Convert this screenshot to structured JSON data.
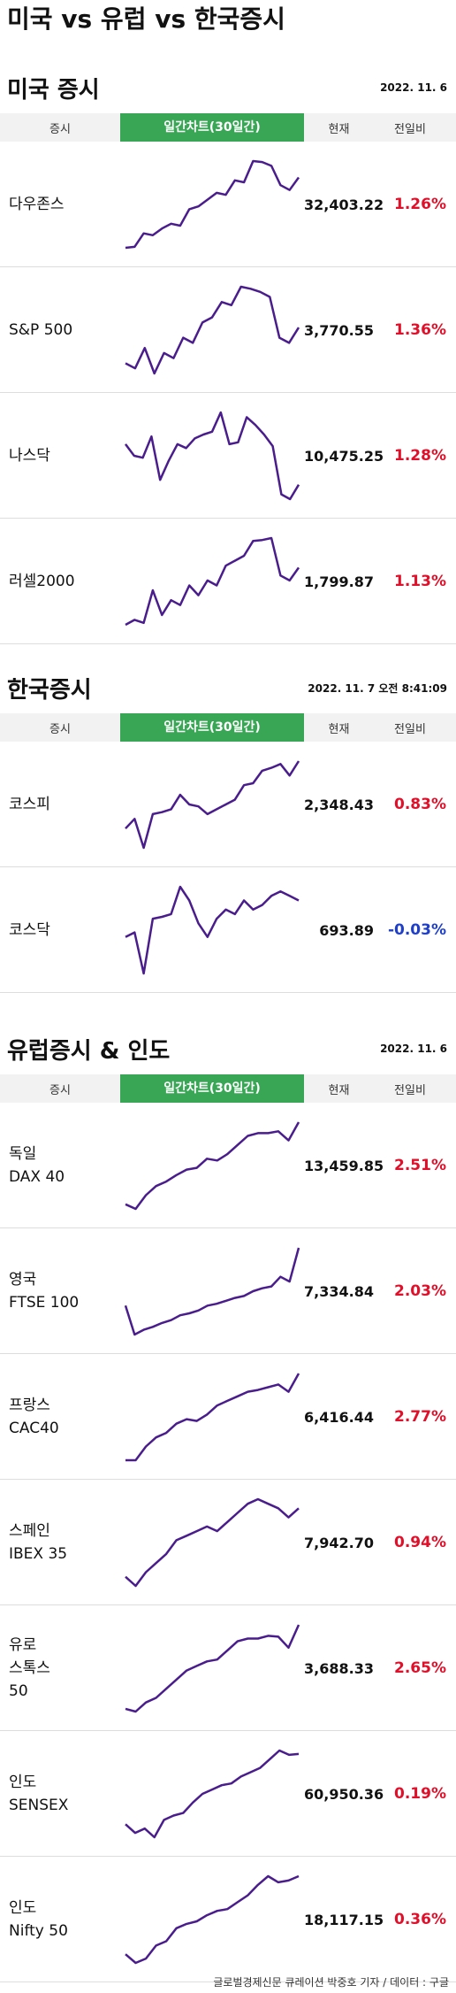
{
  "title": "미국 vs 유럽 vs 한국증시",
  "sections": [
    {
      "title": "미국 증시",
      "date": "2022. 11. 6",
      "header": {
        "market": "증시",
        "chart": "일간차트(30일간)",
        "current": "현재",
        "change": "전일비"
      },
      "rows": [
        {
          "name": [
            "다우존스"
          ],
          "current": "32,403.22",
          "change": "1.26%",
          "spark": [
            5,
            6,
            20,
            18,
            25,
            30,
            28,
            45,
            48,
            55,
            62,
            60,
            75,
            73,
            95,
            94,
            90,
            70,
            65,
            78
          ]
        },
        {
          "name": [
            "S&P 500"
          ],
          "current": "3,770.55",
          "change": "1.36%",
          "spark": [
            15,
            10,
            30,
            5,
            25,
            20,
            40,
            35,
            55,
            60,
            75,
            72,
            90,
            88,
            85,
            80,
            40,
            35,
            50
          ]
        },
        {
          "name": [
            "나스닥"
          ],
          "current": "10,475.25",
          "change": "1.28%",
          "spark": [
            62,
            50,
            48,
            70,
            25,
            45,
            62,
            58,
            68,
            72,
            75,
            95,
            62,
            64,
            90,
            82,
            72,
            60,
            10,
            5,
            20
          ]
        },
        {
          "name": [
            "러셀2000"
          ],
          "current": "1,799.87",
          "change": "1.13%",
          "spark": [
            10,
            15,
            12,
            45,
            20,
            35,
            30,
            50,
            40,
            55,
            50,
            70,
            75,
            80,
            95,
            96,
            98,
            60,
            55,
            68
          ]
        }
      ]
    },
    {
      "title": "한국증시",
      "date": "2022. 11. 7 오전 8:41:09",
      "header": {
        "market": "증시",
        "chart": "일간차트(30일간)",
        "current": "현재",
        "change": "전일비"
      },
      "rows": [
        {
          "name": [
            "코스피"
          ],
          "current": "2,348.43",
          "change": "0.83%",
          "spark": [
            25,
            35,
            5,
            40,
            42,
            45,
            60,
            50,
            48,
            40,
            45,
            50,
            55,
            70,
            72,
            85,
            88,
            92,
            80,
            95
          ]
        },
        {
          "name": [
            "코스닥"
          ],
          "current": "693.89",
          "change": "-0.03%",
          "spark": [
            40,
            45,
            0,
            60,
            62,
            65,
            95,
            80,
            55,
            40,
            60,
            70,
            65,
            80,
            70,
            75,
            85,
            90,
            85,
            80
          ]
        }
      ]
    },
    {
      "title": "유럽증시 & 인도",
      "date": "2022. 11. 6",
      "header": {
        "market": "증시",
        "chart": "일간차트(30일간)",
        "current": "현재",
        "change": "전일비"
      },
      "rows": [
        {
          "name": [
            "독일",
            "DAX 40"
          ],
          "current": "13,459.85",
          "change": "2.51%",
          "spark": [
            10,
            5,
            20,
            30,
            35,
            42,
            48,
            50,
            60,
            58,
            65,
            75,
            85,
            88,
            88,
            90,
            80,
            100
          ]
        },
        {
          "name": [
            "영국",
            "FTSE 100"
          ],
          "current": "7,334.84",
          "change": "2.03%",
          "spark": [
            40,
            10,
            15,
            18,
            22,
            25,
            30,
            32,
            35,
            40,
            42,
            45,
            48,
            50,
            55,
            58,
            60,
            70,
            65,
            100
          ]
        },
        {
          "name": [
            "프랑스",
            "CAC40"
          ],
          "current": "6,416.44",
          "change": "2.77%",
          "spark": [
            5,
            5,
            20,
            30,
            35,
            45,
            50,
            48,
            55,
            65,
            70,
            75,
            80,
            82,
            85,
            88,
            80,
            100
          ]
        },
        {
          "name": [
            "스페인",
            "IBEX 35"
          ],
          "current": "7,942.70",
          "change": "0.94%",
          "spark": [
            10,
            0,
            15,
            25,
            35,
            50,
            55,
            60,
            65,
            60,
            70,
            80,
            90,
            95,
            90,
            85,
            75,
            85
          ]
        },
        {
          "name": [
            "유로",
            "스톡스",
            "50"
          ],
          "current": "3,688.33",
          "change": "2.65%",
          "spark": [
            8,
            5,
            15,
            20,
            30,
            40,
            50,
            55,
            60,
            62,
            72,
            82,
            85,
            85,
            88,
            87,
            75,
            100
          ]
        },
        {
          "name": [
            "인도",
            "SENSEX"
          ],
          "current": "60,950.36",
          "change": "0.19%",
          "spark": [
            15,
            5,
            10,
            0,
            20,
            25,
            28,
            40,
            50,
            55,
            60,
            62,
            70,
            75,
            80,
            90,
            100,
            95,
            96
          ]
        },
        {
          "name": [
            "인도",
            "Nifty 50"
          ],
          "current": "18,117.15",
          "change": "0.36%",
          "spark": [
            10,
            0,
            5,
            20,
            25,
            40,
            45,
            48,
            55,
            60,
            62,
            70,
            78,
            90,
            100,
            93,
            95,
            100
          ]
        }
      ]
    }
  ],
  "footer": "글로벌경제신문 큐레이션 박중호 기자 / 데이터 : 구글"
}
